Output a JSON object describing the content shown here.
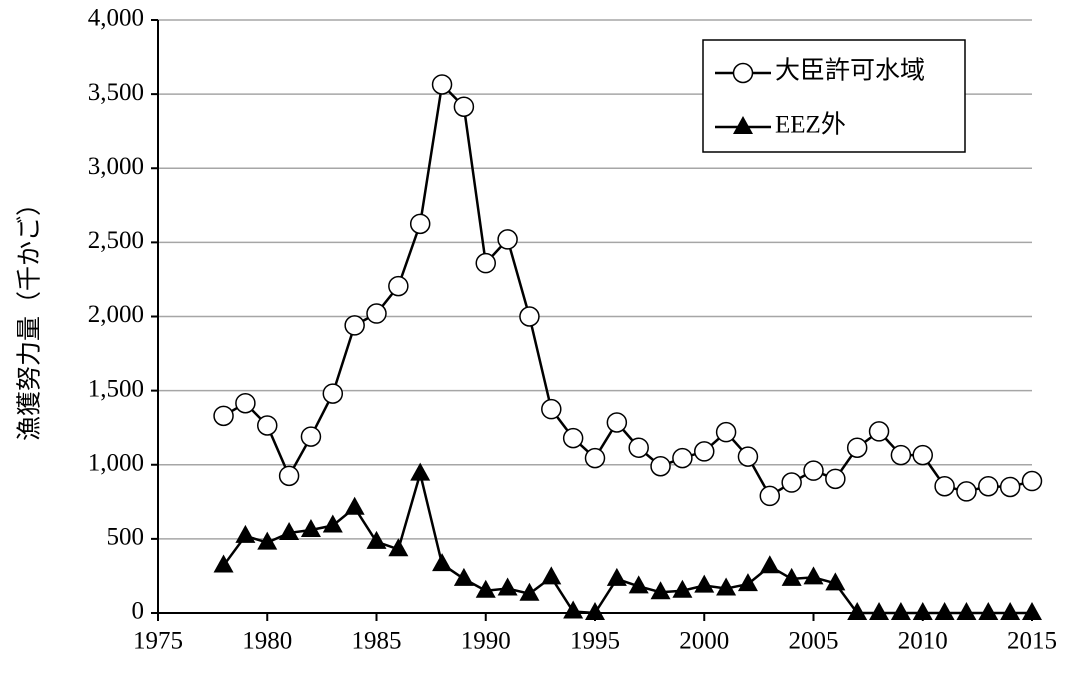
{
  "chart_data": {
    "type": "line",
    "y_label": "漁獲努力量（千かご）",
    "x": [
      1978,
      1979,
      1980,
      1981,
      1982,
      1983,
      1984,
      1985,
      1986,
      1987,
      1988,
      1989,
      1990,
      1991,
      1992,
      1993,
      1994,
      1995,
      1996,
      1997,
      1998,
      1999,
      2000,
      2001,
      2002,
      2003,
      2004,
      2005,
      2006,
      2007,
      2008,
      2009,
      2010,
      2011,
      2012,
      2013,
      2014,
      2015
    ],
    "series": [
      {
        "name": "大臣許可水域",
        "color": "#000000",
        "marker": "circle",
        "values": [
          1330,
          1415,
          1265,
          925,
          1190,
          1480,
          1940,
          2020,
          2205,
          2625,
          3565,
          3415,
          2360,
          2520,
          2000,
          1375,
          1180,
          1045,
          1285,
          1115,
          990,
          1045,
          1090,
          1220,
          1055,
          790,
          880,
          960,
          905,
          1115,
          1225,
          1065,
          1065,
          855,
          820,
          855,
          850,
          890
        ]
      },
      {
        "name": "EEZ外",
        "color": "#000000",
        "marker": "triangle",
        "values": [
          320,
          520,
          475,
          540,
          560,
          590,
          710,
          480,
          430,
          940,
          330,
          230,
          150,
          165,
          130,
          240,
          10,
          0,
          230,
          180,
          140,
          150,
          185,
          165,
          195,
          315,
          230,
          240,
          200,
          0,
          0,
          0,
          0,
          0,
          0,
          0,
          0,
          0
        ]
      }
    ],
    "xlim": [
      1975,
      2015
    ],
    "xticks": [
      1975,
      1980,
      1985,
      1990,
      1995,
      2000,
      2005,
      2010,
      2015
    ],
    "ylim": [
      0,
      4000
    ],
    "yticks": [
      0,
      500,
      {
        "value": 1000,
        "label": "1,000"
      },
      {
        "value": 1500,
        "label": "1,500"
      },
      {
        "value": 2000,
        "label": "2,000"
      },
      {
        "value": 2500,
        "label": "2,500"
      },
      {
        "value": 3000,
        "label": "3,000"
      },
      {
        "value": 3500,
        "label": "3,500"
      },
      {
        "value": 4000,
        "label": "4,000"
      }
    ],
    "grid": true,
    "legend": "top-right"
  }
}
